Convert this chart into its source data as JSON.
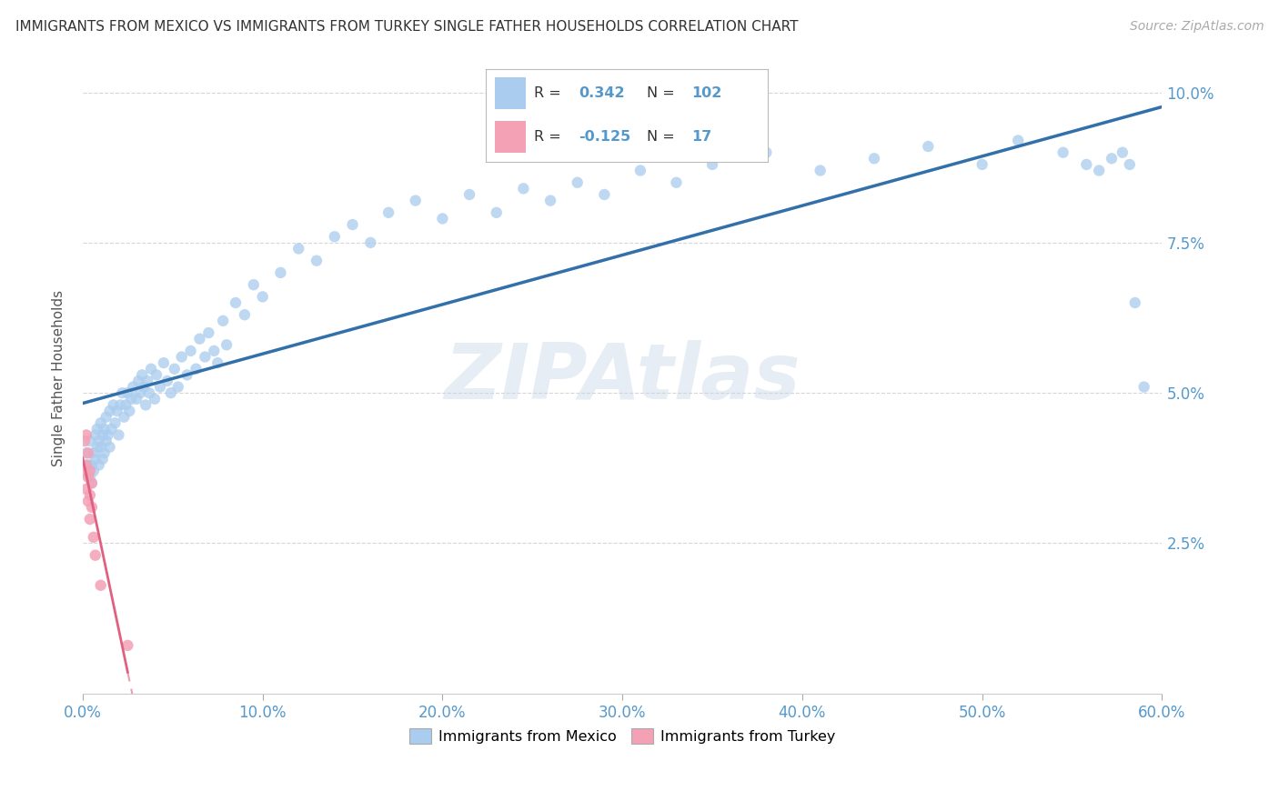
{
  "title": "IMMIGRANTS FROM MEXICO VS IMMIGRANTS FROM TURKEY SINGLE FATHER HOUSEHOLDS CORRELATION CHART",
  "source": "Source: ZipAtlas.com",
  "ylabel": "Single Father Households",
  "ytick_vals": [
    0.025,
    0.05,
    0.075,
    0.1
  ],
  "ytick_labels": [
    "2.5%",
    "5.0%",
    "7.5%",
    "10.0%"
  ],
  "xtick_vals": [
    0.0,
    0.1,
    0.2,
    0.3,
    0.4,
    0.5,
    0.6
  ],
  "xtick_labels": [
    "0.0%",
    "10.0%",
    "20.0%",
    "30.0%",
    "40.0%",
    "50.0%",
    "60.0%"
  ],
  "legend_labels": [
    "Immigrants from Mexico",
    "Immigrants from Turkey"
  ],
  "r_mexico": 0.342,
  "n_mexico": 102,
  "r_turkey": -0.125,
  "n_turkey": 17,
  "color_mexico": "#aaccee",
  "color_turkey": "#f4a0b5",
  "color_mexico_line": "#3370aa",
  "color_turkey_line": "#e06080",
  "xlim": [
    0.0,
    0.6
  ],
  "ylim": [
    0.0,
    0.105
  ],
  "watermark": "ZIPAtlas",
  "background_color": "#ffffff",
  "mexico_x": [
    0.002,
    0.003,
    0.004,
    0.004,
    0.005,
    0.005,
    0.006,
    0.006,
    0.007,
    0.007,
    0.008,
    0.008,
    0.009,
    0.009,
    0.01,
    0.01,
    0.011,
    0.011,
    0.012,
    0.012,
    0.013,
    0.013,
    0.014,
    0.015,
    0.015,
    0.016,
    0.017,
    0.018,
    0.019,
    0.02,
    0.021,
    0.022,
    0.023,
    0.024,
    0.025,
    0.026,
    0.027,
    0.028,
    0.03,
    0.031,
    0.032,
    0.033,
    0.034,
    0.035,
    0.036,
    0.037,
    0.038,
    0.04,
    0.041,
    0.043,
    0.045,
    0.047,
    0.049,
    0.051,
    0.053,
    0.055,
    0.058,
    0.06,
    0.063,
    0.065,
    0.068,
    0.07,
    0.073,
    0.075,
    0.078,
    0.08,
    0.085,
    0.09,
    0.095,
    0.1,
    0.11,
    0.12,
    0.13,
    0.14,
    0.15,
    0.16,
    0.17,
    0.185,
    0.2,
    0.215,
    0.23,
    0.245,
    0.26,
    0.275,
    0.29,
    0.31,
    0.33,
    0.35,
    0.38,
    0.41,
    0.44,
    0.47,
    0.5,
    0.52,
    0.545,
    0.558,
    0.565,
    0.572,
    0.578,
    0.582,
    0.585,
    0.59
  ],
  "mexico_y": [
    0.04,
    0.038,
    0.036,
    0.042,
    0.038,
    0.035,
    0.04,
    0.037,
    0.043,
    0.039,
    0.044,
    0.041,
    0.042,
    0.038,
    0.045,
    0.041,
    0.043,
    0.039,
    0.044,
    0.04,
    0.046,
    0.042,
    0.043,
    0.047,
    0.041,
    0.044,
    0.048,
    0.045,
    0.047,
    0.043,
    0.048,
    0.05,
    0.046,
    0.048,
    0.05,
    0.047,
    0.049,
    0.051,
    0.049,
    0.052,
    0.05,
    0.053,
    0.051,
    0.048,
    0.052,
    0.05,
    0.054,
    0.049,
    0.053,
    0.051,
    0.055,
    0.052,
    0.05,
    0.054,
    0.051,
    0.056,
    0.053,
    0.057,
    0.054,
    0.059,
    0.056,
    0.06,
    0.057,
    0.055,
    0.062,
    0.058,
    0.065,
    0.063,
    0.068,
    0.066,
    0.07,
    0.074,
    0.072,
    0.076,
    0.078,
    0.075,
    0.08,
    0.082,
    0.079,
    0.083,
    0.08,
    0.084,
    0.082,
    0.085,
    0.083,
    0.087,
    0.085,
    0.088,
    0.09,
    0.087,
    0.089,
    0.091,
    0.088,
    0.092,
    0.09,
    0.088,
    0.087,
    0.089,
    0.09,
    0.088,
    0.065,
    0.051
  ],
  "turkey_x": [
    0.001,
    0.001,
    0.002,
    0.002,
    0.002,
    0.003,
    0.003,
    0.003,
    0.004,
    0.004,
    0.004,
    0.005,
    0.005,
    0.006,
    0.007,
    0.01,
    0.025
  ],
  "turkey_y": [
    0.042,
    0.037,
    0.043,
    0.038,
    0.034,
    0.04,
    0.036,
    0.032,
    0.037,
    0.033,
    0.029,
    0.035,
    0.031,
    0.026,
    0.023,
    0.018,
    0.008
  ]
}
